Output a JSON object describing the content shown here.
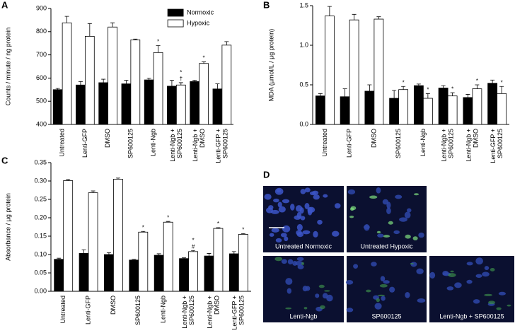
{
  "chart_data": [
    {
      "type": "bar",
      "panel_label": "A",
      "y_label": "Counts / minute / ng protein",
      "categories": [
        [
          "Untreated"
        ],
        [
          "Lenti-GFP"
        ],
        [
          "DMSO"
        ],
        [
          "SP600125"
        ],
        [
          "Lenti-Ngb"
        ],
        [
          "Lenti-Ngb +",
          "SP600125"
        ],
        [
          "Lenti-Ngb +",
          "DMSO"
        ],
        [
          "Lenti-GFP +",
          "SP600125"
        ]
      ],
      "series": [
        {
          "name": "Normoxic",
          "color": "#000000",
          "values": [
            550,
            570,
            580,
            575,
            592,
            565,
            585,
            553
          ],
          "errors": [
            5,
            15,
            15,
            15,
            8,
            25,
            5,
            22
          ]
        },
        {
          "name": "Hypoxic",
          "color": "#ffffff",
          "values": [
            838,
            780,
            820,
            765,
            710,
            570,
            663,
            742
          ],
          "errors": [
            28,
            55,
            18,
            3,
            30,
            10,
            7,
            15
          ],
          "annotations": [
            null,
            null,
            null,
            null,
            [
              "*"
            ],
            [
              "*",
              "†"
            ],
            [
              "*"
            ],
            null
          ]
        }
      ],
      "ylim": [
        400,
        900
      ],
      "yticks": [
        400,
        500,
        600,
        700,
        800,
        900
      ],
      "legend": "top-right"
    },
    {
      "type": "bar",
      "panel_label": "B",
      "y_label": "MDA (µmol/L / µg protein)",
      "categories": [
        [
          "Untreated"
        ],
        [
          "Lenti-GFP"
        ],
        [
          "DMSO"
        ],
        [
          "SP600125"
        ],
        [
          "Lenti-Ngb"
        ],
        [
          "Lenti-Ngb +",
          "SP600125"
        ],
        [
          "Lenti-Ngb +",
          "DMSO"
        ],
        [
          "Lenti-GFP +",
          "SP600125"
        ]
      ],
      "series": [
        {
          "name": "Normoxic",
          "color": "#000000",
          "values": [
            0.36,
            0.35,
            0.42,
            0.33,
            0.49,
            0.46,
            0.34,
            0.52
          ],
          "errors": [
            0.03,
            0.1,
            0.08,
            0.1,
            0.02,
            0.03,
            0.04,
            0.04
          ]
        },
        {
          "name": "Hypoxic",
          "color": "#ffffff",
          "values": [
            1.37,
            1.32,
            1.33,
            0.44,
            0.33,
            0.36,
            0.45,
            0.39
          ],
          "errors": [
            0.12,
            0.07,
            0.03,
            0.04,
            0.06,
            0.04,
            0.05,
            0.09
          ],
          "annotations": [
            null,
            null,
            null,
            [
              "*"
            ],
            [
              "*"
            ],
            [
              "*"
            ],
            [
              "*"
            ],
            [
              "*"
            ]
          ]
        }
      ],
      "ylim": [
        0,
        1.5
      ],
      "yticks": [
        {
          "value": 0,
          "label": "0.0"
        },
        0.5,
        {
          "value": 1,
          "label": "1.0"
        },
        1.5
      ]
    },
    {
      "type": "bar",
      "panel_label": "C",
      "y_label": "Absorbance / µg protein",
      "categories": [
        [
          "Untreated"
        ],
        [
          "Lenti-GFP"
        ],
        [
          "DMSO"
        ],
        [
          "SP600125"
        ],
        [
          "Lenti-Ngb"
        ],
        [
          "Lenti-Ngb +",
          "SP600125"
        ],
        [
          "Lenti-Ngb +",
          "DMSO"
        ],
        [
          "Lenti-GFP +",
          "SP600125"
        ]
      ],
      "series": [
        {
          "name": "Normoxic",
          "color": "#000000",
          "values": [
            0.087,
            0.103,
            0.1,
            0.085,
            0.098,
            0.089,
            0.096,
            0.102
          ],
          "errors": [
            0.003,
            0.01,
            0.005,
            0.002,
            0.004,
            0.002,
            0.007,
            0.006
          ]
        },
        {
          "name": "Hypoxic",
          "color": "#ffffff",
          "values": [
            0.301,
            0.268,
            0.305,
            0.161,
            0.188,
            0.108,
            0.171,
            0.155
          ],
          "errors": [
            0.003,
            0.005,
            0.003,
            0.002,
            0.002,
            0.003,
            0.002,
            0.002
          ],
          "annotations": [
            null,
            null,
            null,
            [
              "*"
            ],
            [
              "*"
            ],
            [
              "*",
              "#"
            ],
            [
              "*"
            ],
            [
              "*"
            ]
          ]
        }
      ],
      "ylim": [
        0,
        0.35
      ],
      "yticks": [
        {
          "value": 0,
          "label": "0.00"
        },
        {
          "value": 0.05,
          "label": "0.05"
        },
        {
          "value": 0.1,
          "label": "0.10"
        },
        {
          "value": 0.15,
          "label": "0.15"
        },
        {
          "value": 0.2,
          "label": "0.20"
        },
        {
          "value": 0.25,
          "label": "0.25"
        },
        {
          "value": 0.3,
          "label": "0.30"
        },
        {
          "value": 0.35,
          "label": "0.35"
        }
      ]
    }
  ],
  "images": {
    "panel_label": "D",
    "captions": [
      "Untreated Normoxic",
      "Untreated Hypoxic",
      "Lenti-Ngb",
      "SP600125",
      "Lenti-Ngb + SP600125"
    ]
  }
}
